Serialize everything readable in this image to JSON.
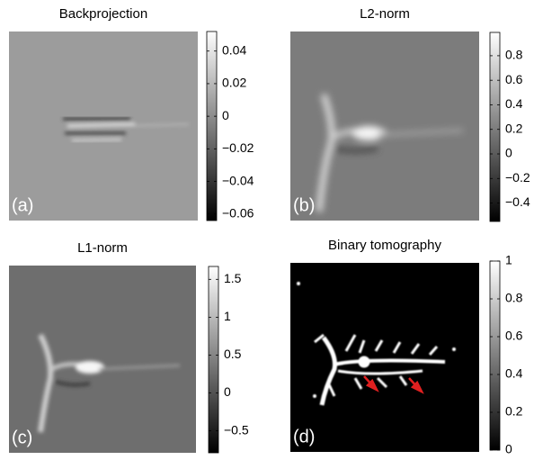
{
  "chart_data": [
    {
      "type": "heatmap",
      "title": "Backprojection",
      "label": "(a)",
      "colormap": "gray",
      "clim": [
        -0.064,
        0.052
      ],
      "cticks": [
        {
          "value": 0.04,
          "label": "0.04"
        },
        {
          "value": 0.02,
          "label": "0.02"
        },
        0,
        {
          "value": -0.02,
          "label": "−0.02"
        },
        {
          "value": -0.04,
          "label": "−0.04"
        },
        {
          "value": -0.06,
          "label": "−0.06"
        }
      ]
    },
    {
      "type": "heatmap",
      "title": "L2-norm",
      "label": "(b)",
      "colormap": "gray",
      "clim": [
        -0.55,
        0.99
      ],
      "cticks": [
        0.8,
        0.6,
        0.4,
        0.2,
        0,
        {
          "value": -0.2,
          "label": "−0.2"
        },
        {
          "value": -0.4,
          "label": "−0.4"
        }
      ]
    },
    {
      "type": "heatmap",
      "title": "L1-norm",
      "label": "(c)",
      "colormap": "gray",
      "clim": [
        -0.79,
        1.67
      ],
      "cticks": [
        1.5,
        1,
        0.5,
        0,
        {
          "value": -0.5,
          "label": "−0.5"
        }
      ]
    },
    {
      "type": "heatmap",
      "title": "Binary tomography",
      "label": "(d)",
      "colormap": "gray",
      "clim": [
        0,
        1
      ],
      "cticks": [
        1,
        0.8,
        0.6,
        0.4,
        0.2,
        0
      ]
    }
  ]
}
